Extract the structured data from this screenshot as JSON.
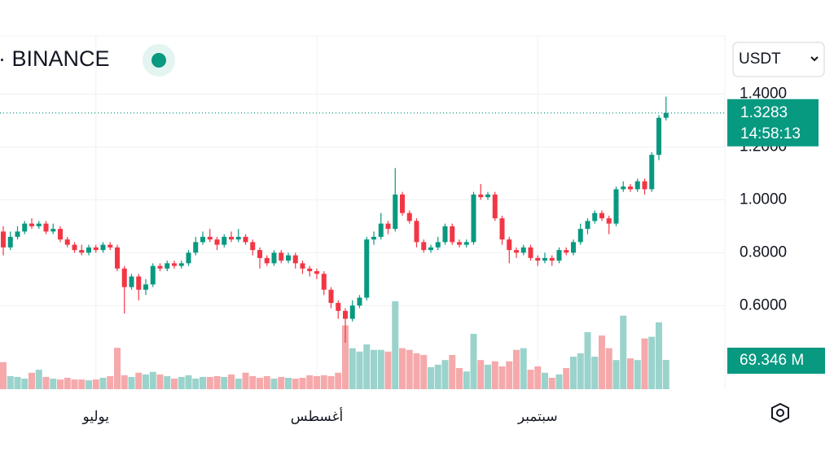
{
  "chart_data": {
    "type": "candlestick",
    "title": "· BINANCE",
    "currency": "USDT",
    "countdown": "14:58:13",
    "up_color": "#089981",
    "down_color": "#f23645",
    "grid": true,
    "categories": [
      null,
      null,
      null,
      null,
      null,
      null,
      null,
      null,
      null,
      null,
      null,
      null,
      null,
      "يوليو",
      null,
      null,
      null,
      null,
      null,
      null,
      null,
      null,
      null,
      null,
      null,
      null,
      null,
      null,
      null,
      null,
      null,
      null,
      null,
      null,
      null,
      null,
      null,
      null,
      null,
      null,
      null,
      null,
      null,
      null,
      "أغسطس",
      null,
      null,
      null,
      null,
      null,
      null,
      null,
      null,
      null,
      null,
      null,
      null,
      null,
      null,
      null,
      null,
      null,
      null,
      null,
      null,
      null,
      null,
      null,
      null,
      null,
      null,
      null,
      null,
      null,
      null,
      "سبتمبر",
      null,
      null,
      null,
      null,
      null,
      null,
      null,
      null,
      null,
      null,
      null,
      null,
      null,
      null,
      null,
      null,
      null,
      null
    ],
    "open": [
      0.88,
      0.82,
      0.86,
      0.88,
      0.91,
      0.9,
      0.91,
      0.88,
      0.89,
      0.85,
      0.83,
      0.81,
      0.8,
      0.82,
      0.81,
      0.83,
      0.82,
      0.74,
      0.67,
      0.71,
      0.66,
      0.68,
      0.75,
      0.74,
      0.76,
      0.75,
      0.76,
      0.8,
      0.84,
      0.86,
      0.85,
      0.83,
      0.86,
      0.85,
      0.86,
      0.84,
      0.81,
      0.78,
      0.76,
      0.8,
      0.77,
      0.79,
      0.76,
      0.74,
      0.73,
      0.72,
      0.66,
      0.61,
      0.58,
      0.55,
      0.6,
      0.63,
      0.85,
      0.86,
      0.91,
      0.89,
      1.02,
      0.95,
      0.92,
      0.84,
      0.81,
      0.82,
      0.84,
      0.9,
      0.84,
      0.83,
      0.84,
      1.02,
      1.01,
      1.02,
      0.93,
      0.85,
      0.81,
      0.8,
      0.82,
      0.78,
      0.77,
      0.78,
      0.77,
      0.81,
      0.8,
      0.84,
      0.89,
      0.92,
      0.95,
      0.93,
      0.91,
      1.04,
      1.05,
      1.04,
      1.07,
      1.04,
      1.17,
      1.31
    ],
    "high": [
      0.9,
      0.88,
      0.9,
      0.92,
      0.93,
      0.92,
      0.92,
      0.91,
      0.9,
      0.86,
      0.84,
      0.83,
      0.83,
      0.83,
      0.84,
      0.84,
      0.83,
      0.75,
      0.72,
      0.72,
      0.7,
      0.76,
      0.76,
      0.77,
      0.77,
      0.77,
      0.81,
      0.86,
      0.88,
      0.89,
      0.86,
      0.87,
      0.88,
      0.89,
      0.87,
      0.85,
      0.82,
      0.79,
      0.81,
      0.81,
      0.8,
      0.8,
      0.77,
      0.75,
      0.74,
      0.73,
      0.67,
      0.62,
      0.59,
      0.62,
      0.64,
      0.86,
      0.88,
      0.95,
      0.92,
      1.12,
      1.03,
      0.96,
      0.93,
      0.85,
      0.83,
      0.86,
      0.91,
      0.91,
      0.85,
      0.85,
      1.03,
      1.06,
      1.03,
      1.03,
      0.94,
      0.86,
      0.82,
      0.83,
      0.83,
      0.79,
      0.8,
      0.79,
      0.82,
      0.82,
      0.85,
      0.91,
      0.93,
      0.96,
      0.96,
      0.94,
      1.05,
      1.07,
      1.06,
      1.08,
      1.08,
      1.18,
      1.32,
      1.39
    ],
    "low": [
      0.79,
      0.81,
      0.85,
      0.87,
      0.89,
      0.89,
      0.87,
      0.87,
      0.84,
      0.82,
      0.8,
      0.79,
      0.79,
      0.8,
      0.8,
      0.81,
      0.73,
      0.57,
      0.66,
      0.62,
      0.64,
      0.67,
      0.73,
      0.73,
      0.74,
      0.74,
      0.75,
      0.79,
      0.83,
      0.84,
      0.81,
      0.82,
      0.84,
      0.84,
      0.83,
      0.79,
      0.74,
      0.75,
      0.75,
      0.76,
      0.76,
      0.74,
      0.72,
      0.71,
      0.7,
      0.64,
      0.59,
      0.55,
      0.46,
      0.54,
      0.59,
      0.62,
      0.83,
      0.85,
      0.87,
      0.88,
      0.94,
      0.91,
      0.82,
      0.8,
      0.8,
      0.81,
      0.83,
      0.83,
      0.82,
      0.82,
      0.83,
      1.0,
      1.0,
      0.92,
      0.83,
      0.76,
      0.78,
      0.79,
      0.77,
      0.75,
      0.76,
      0.75,
      0.76,
      0.79,
      0.79,
      0.83,
      0.87,
      0.91,
      0.92,
      0.87,
      0.9,
      1.03,
      1.03,
      1.03,
      1.02,
      1.03,
      1.15,
      1.3
    ],
    "close": [
      0.82,
      0.86,
      0.88,
      0.91,
      0.9,
      0.91,
      0.88,
      0.89,
      0.85,
      0.83,
      0.81,
      0.8,
      0.82,
      0.81,
      0.83,
      0.82,
      0.74,
      0.67,
      0.71,
      0.66,
      0.68,
      0.75,
      0.74,
      0.76,
      0.75,
      0.76,
      0.8,
      0.84,
      0.86,
      0.85,
      0.83,
      0.86,
      0.85,
      0.86,
      0.84,
      0.81,
      0.78,
      0.76,
      0.8,
      0.77,
      0.79,
      0.76,
      0.74,
      0.73,
      0.72,
      0.66,
      0.61,
      0.58,
      0.55,
      0.6,
      0.63,
      0.85,
      0.86,
      0.91,
      0.89,
      1.02,
      0.95,
      0.92,
      0.84,
      0.81,
      0.82,
      0.84,
      0.9,
      0.84,
      0.83,
      0.84,
      1.02,
      1.01,
      1.02,
      0.93,
      0.85,
      0.81,
      0.8,
      0.82,
      0.78,
      0.77,
      0.78,
      0.77,
      0.81,
      0.8,
      0.84,
      0.89,
      0.92,
      0.95,
      0.93,
      0.91,
      1.04,
      1.05,
      1.04,
      1.07,
      1.04,
      1.17,
      1.31,
      1.3283
    ],
    "volume": {
      "values": [
        64,
        31,
        29,
        25,
        39,
        46,
        29,
        25,
        23,
        27,
        23,
        23,
        21,
        23,
        27,
        31,
        98,
        33,
        29,
        39,
        35,
        41,
        35,
        31,
        25,
        29,
        33,
        25,
        29,
        29,
        31,
        29,
        35,
        25,
        39,
        31,
        27,
        31,
        25,
        29,
        27,
        25,
        27,
        33,
        31,
        33,
        31,
        39,
        151,
        97,
        89,
        106,
        93,
        93,
        89,
        208,
        97,
        93,
        85,
        81,
        52,
        58,
        69,
        81,
        50,
        42,
        131,
        69,
        58,
        66,
        54,
        66,
        93,
        97,
        46,
        54,
        39,
        27,
        35,
        50,
        77,
        85,
        135,
        77,
        127,
        97,
        69,
        174,
        73,
        69,
        120,
        124,
        158,
        69.346
      ],
      "label": "69.346 M",
      "up_color": "#9ad3cc",
      "down_color": "#f5a9ab"
    },
    "ylim": [
      0.29,
      1.62
    ],
    "yticks": [
      {
        "value": 0.6,
        "label": "0.6000"
      },
      {
        "value": 0.8,
        "label": "0.8000"
      },
      {
        "value": 1,
        "label": "1.0000"
      },
      {
        "value": 1.2,
        "label": "1.2000"
      },
      {
        "value": 1.4,
        "label": "1.4000"
      }
    ]
  }
}
